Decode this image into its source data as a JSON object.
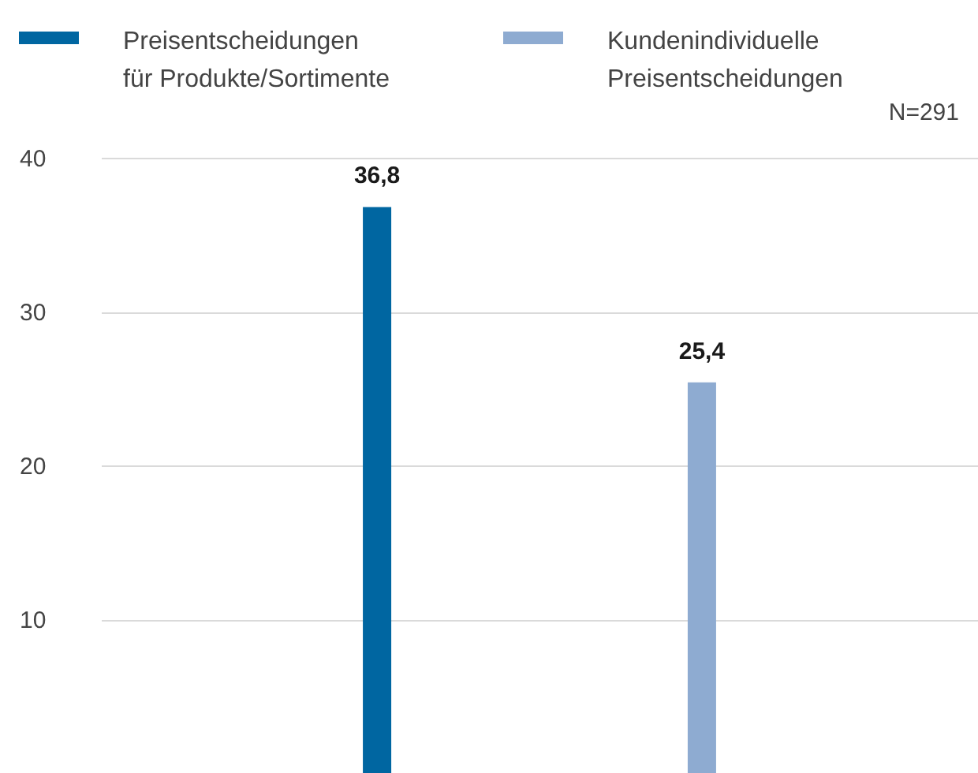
{
  "chart_data": {
    "type": "bar",
    "categories": [
      null
    ],
    "series": [
      {
        "name": "Preisentscheidungen für Produkte/Sortimente",
        "color": "#0066a1",
        "values": [
          36.8
        ],
        "value_labels": [
          "36,8"
        ]
      },
      {
        "name": "Kundenindividuelle Preisentscheidungen",
        "color": "#8eabd1",
        "values": [
          25.4
        ],
        "value_labels": [
          "25,4"
        ]
      }
    ],
    "ylim": [
      0,
      40
    ],
    "yticks": [
      10,
      20,
      30,
      40
    ],
    "grid": "y",
    "legend": "top",
    "annotations": [
      "N=291"
    ]
  }
}
